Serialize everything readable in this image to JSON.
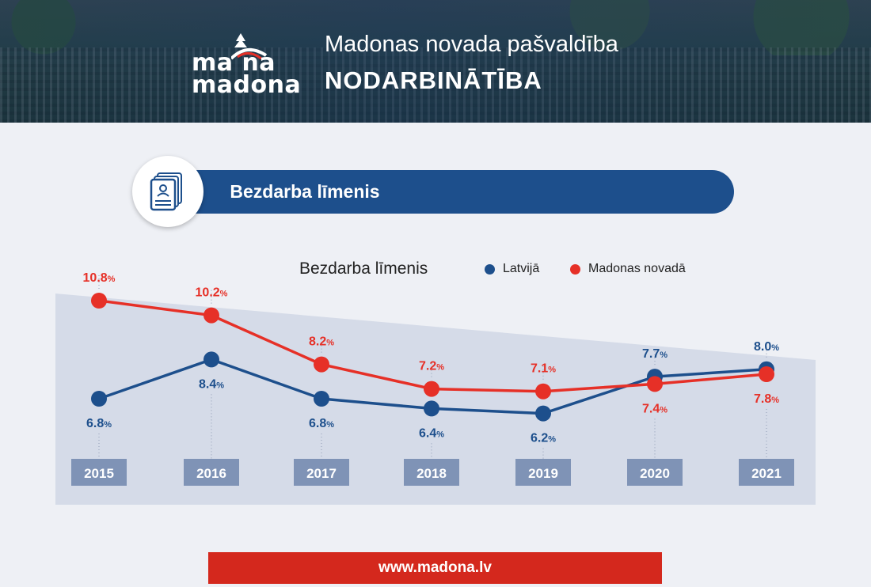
{
  "header": {
    "logo_line1": "ma na",
    "logo_line2": "madona",
    "subtitle": "Madonas novada pašvaldība",
    "title": "NODARBINĀTĪBA"
  },
  "section": {
    "title": "Bezdarba līmenis",
    "icon": "document-person-icon"
  },
  "legend": {
    "title": "Bezdarba līmenis",
    "items": [
      {
        "label": "Latvijā",
        "color": "#1d4f8c"
      },
      {
        "label": "Madonas novadā",
        "color": "#e63027"
      }
    ]
  },
  "chart_data": {
    "type": "line",
    "title": "Bezdarba līmenis",
    "categories": [
      "2015",
      "2016",
      "2017",
      "2018",
      "2019",
      "2020",
      "2021"
    ],
    "unit": "%",
    "series": [
      {
        "name": "Latvijā",
        "color": "#1d4f8c",
        "values": [
          6.8,
          8.4,
          6.8,
          6.4,
          6.2,
          7.7,
          8.0
        ],
        "labels": [
          "6.8",
          "8.4",
          "6.8",
          "6.4",
          "6.2",
          "7.7",
          "8.0"
        ]
      },
      {
        "name": "Madonas novadā",
        "color": "#e63027",
        "values": [
          10.8,
          10.2,
          8.2,
          7.2,
          7.1,
          7.4,
          7.8
        ],
        "labels": [
          "10.8",
          "10.2",
          "8.2",
          "7.2",
          "7.1",
          "7.4",
          "7.8"
        ]
      }
    ],
    "ylim": [
      6.0,
      11.0
    ],
    "grid": false,
    "legend_position": "top"
  },
  "footer": {
    "url": "www.madona.lv"
  }
}
